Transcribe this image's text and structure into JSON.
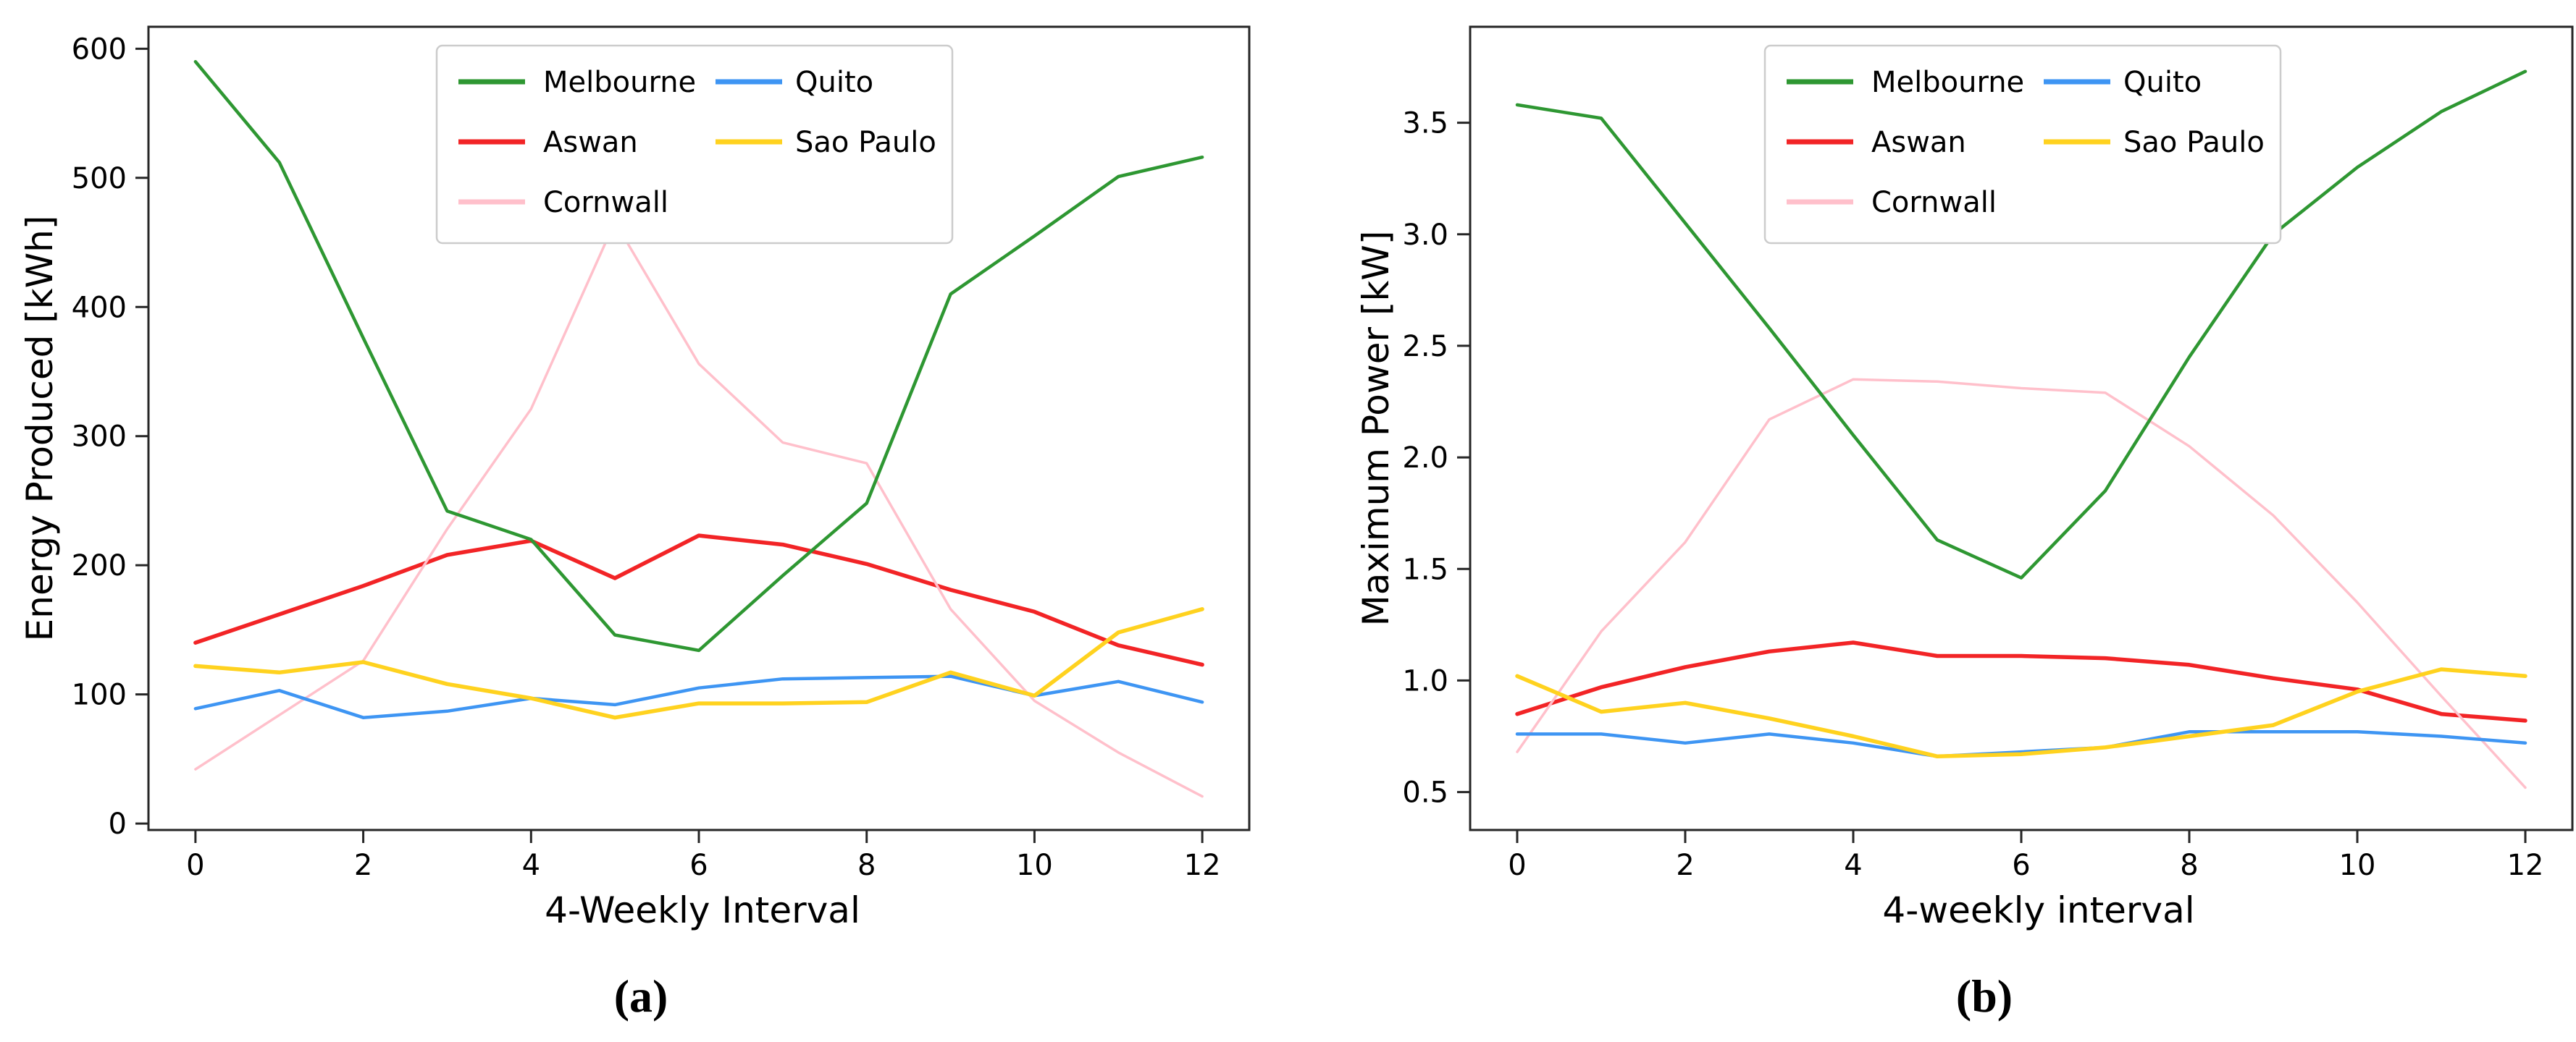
{
  "page": {
    "background": "#ffffff"
  },
  "chart_data": [
    {
      "type": "line",
      "title": "",
      "xlabel": "4-Weekly Interval",
      "ylabel": "Energy Produced [kWh]",
      "caption": "(a)",
      "x": [
        0,
        1,
        2,
        3,
        4,
        5,
        6,
        7,
        8,
        9,
        10,
        11,
        12
      ],
      "xlim": [
        -0.56,
        12.56
      ],
      "ylim": [
        -5,
        617
      ],
      "grid": false,
      "xticks": [
        0,
        2,
        4,
        6,
        8,
        10,
        12
      ],
      "xtick_labels": [
        "0",
        "2",
        "4",
        "6",
        "8",
        "10",
        "12"
      ],
      "yticks": [
        0,
        100,
        200,
        300,
        400,
        500,
        600
      ],
      "ytick_labels": [
        "0",
        "100",
        "200",
        "300",
        "400",
        "500",
        "600"
      ],
      "legend_position": "upper center",
      "legend_columns": [
        [
          "Melbourne",
          "Aswan",
          "Cornwall"
        ],
        [
          "Quito",
          "Sao Paulo"
        ]
      ],
      "series": [
        {
          "name": "Melbourne",
          "color": "#2e9732",
          "values": [
            590,
            512,
            376,
            242,
            220,
            146,
            134,
            192,
            248,
            410,
            455,
            501,
            516
          ]
        },
        {
          "name": "Aswan",
          "color": "#f22426",
          "values": [
            140,
            162,
            184,
            208,
            219,
            190,
            223,
            216,
            201,
            181,
            164,
            138,
            123
          ]
        },
        {
          "name": "Cornwall",
          "color": "#ffc0cb",
          "values": [
            42,
            84,
            126,
            228,
            321,
            466,
            356,
            295,
            279,
            166,
            95,
            55,
            21
          ]
        },
        {
          "name": "Quito",
          "color": "#3e95f3",
          "values": [
            89,
            103,
            82,
            87,
            97,
            92,
            105,
            112,
            113,
            114,
            99,
            110,
            94
          ]
        },
        {
          "name": "Sao Paulo",
          "color": "#ffd21f",
          "values": [
            122,
            117,
            125,
            108,
            97,
            82,
            93,
            93,
            94,
            117,
            99,
            148,
            166
          ]
        }
      ]
    },
    {
      "type": "line",
      "title": "",
      "xlabel": "4-weekly interval",
      "ylabel": "Maximum Power [kW]",
      "caption": "(b)",
      "x": [
        0,
        1,
        2,
        3,
        4,
        5,
        6,
        7,
        8,
        9,
        10,
        11,
        12
      ],
      "xlim": [
        -0.56,
        12.56
      ],
      "ylim": [
        0.33,
        3.93
      ],
      "grid": false,
      "xticks": [
        0,
        2,
        4,
        6,
        8,
        10,
        12
      ],
      "xtick_labels": [
        "0",
        "2",
        "4",
        "6",
        "8",
        "10",
        "12"
      ],
      "yticks": [
        0.5,
        1.0,
        1.5,
        2.0,
        2.5,
        3.0,
        3.5
      ],
      "ytick_labels": [
        "0.5",
        "1.0",
        "1.5",
        "2.0",
        "2.5",
        "3.0",
        "3.5"
      ],
      "legend_position": "upper center",
      "legend_columns": [
        [
          "Melbourne",
          "Aswan",
          "Cornwall"
        ],
        [
          "Quito",
          "Sao Paulo"
        ]
      ],
      "series": [
        {
          "name": "Melbourne",
          "color": "#2e9732",
          "values": [
            3.58,
            3.52,
            3.05,
            2.58,
            2.1,
            1.63,
            1.46,
            1.85,
            2.45,
            3.0,
            3.3,
            3.55,
            3.73
          ]
        },
        {
          "name": "Aswan",
          "color": "#f22426",
          "values": [
            0.85,
            0.97,
            1.06,
            1.13,
            1.17,
            1.11,
            1.11,
            1.1,
            1.07,
            1.01,
            0.96,
            0.85,
            0.82
          ]
        },
        {
          "name": "Cornwall",
          "color": "#ffc0cb",
          "values": [
            0.68,
            1.22,
            1.62,
            2.17,
            2.35,
            2.34,
            2.31,
            2.29,
            2.05,
            1.74,
            1.35,
            0.93,
            0.52
          ]
        },
        {
          "name": "Quito",
          "color": "#3e95f3",
          "values": [
            0.76,
            0.76,
            0.72,
            0.76,
            0.72,
            0.66,
            0.68,
            0.7,
            0.77,
            0.77,
            0.77,
            0.75,
            0.72
          ]
        },
        {
          "name": "Sao Paulo",
          "color": "#ffd21f",
          "values": [
            1.02,
            0.86,
            0.9,
            0.83,
            0.75,
            0.66,
            0.67,
            0.7,
            0.75,
            0.8,
            0.95,
            1.05,
            1.02
          ]
        }
      ]
    }
  ]
}
